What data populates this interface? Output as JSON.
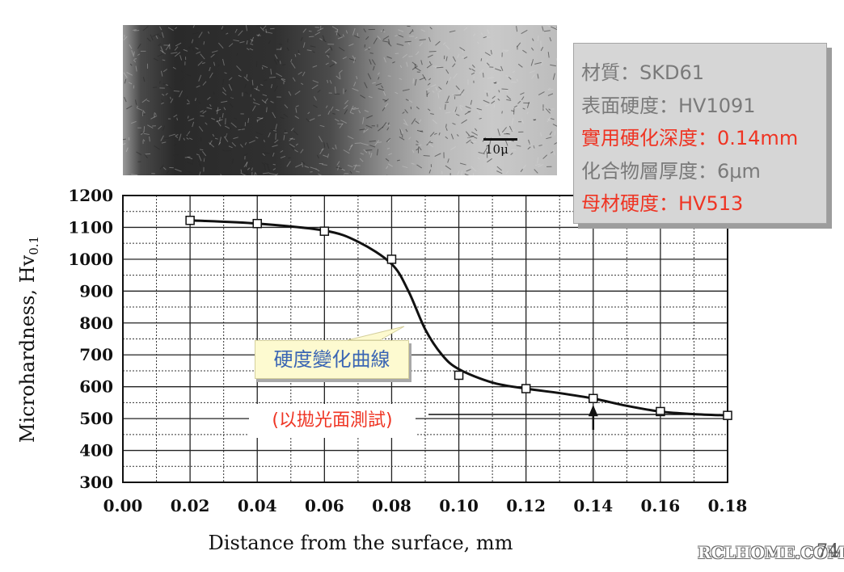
{
  "micrograph": {
    "scale_label": "10μ"
  },
  "info_box": {
    "lines": [
      "材質：SKD61",
      "表面硬度：HV1091",
      "實用硬化深度：0.14mm",
      "化合物層厚度：6μm",
      "母材硬度：HV513"
    ],
    "colors": [
      "#7a7a7a",
      "#7a7a7a",
      "#ef3423",
      "#7a7a7a",
      "#ef3423"
    ]
  },
  "callout": {
    "text": "硬度變化曲線"
  },
  "note": {
    "text": "(以拋光面測試)"
  },
  "watermark": "RCLHOME.COM",
  "page_number": "74",
  "chart_data": {
    "type": "line",
    "xlabel": "Distance from the surface, mm",
    "ylabel": "Microhardness, Hv",
    "ylabel_sub": "0.1",
    "xlim": [
      0,
      0.18
    ],
    "ylim": [
      300,
      1200
    ],
    "x_ticks": [
      "0.00",
      "0.02",
      "0.04",
      "0.06",
      "0.08",
      "0.10",
      "0.12",
      "0.14",
      "0.16",
      "0.18"
    ],
    "y_ticks": [
      "1200",
      "1100",
      "1000",
      "900",
      "800",
      "700",
      "600",
      "500",
      "400",
      "300"
    ],
    "grid": true,
    "series": [
      {
        "x": [
          0.02,
          0.04,
          0.06,
          0.08,
          0.1,
          0.12,
          0.14,
          0.16,
          0.18
        ],
        "y": [
          1122,
          1112,
          1088,
          1000,
          636,
          594,
          563,
          522,
          510
        ]
      }
    ],
    "curve": {
      "x": [
        0.02,
        0.04,
        0.06,
        0.07,
        0.08,
        0.085,
        0.09,
        0.095,
        0.1,
        0.11,
        0.12,
        0.13,
        0.14,
        0.15,
        0.16,
        0.17,
        0.18
      ],
      "y": [
        1122,
        1112,
        1090,
        1055,
        985,
        900,
        780,
        700,
        655,
        613,
        594,
        580,
        563,
        540,
        522,
        514,
        510
      ]
    },
    "annotations": {
      "arrow_x": 0.14
    }
  }
}
